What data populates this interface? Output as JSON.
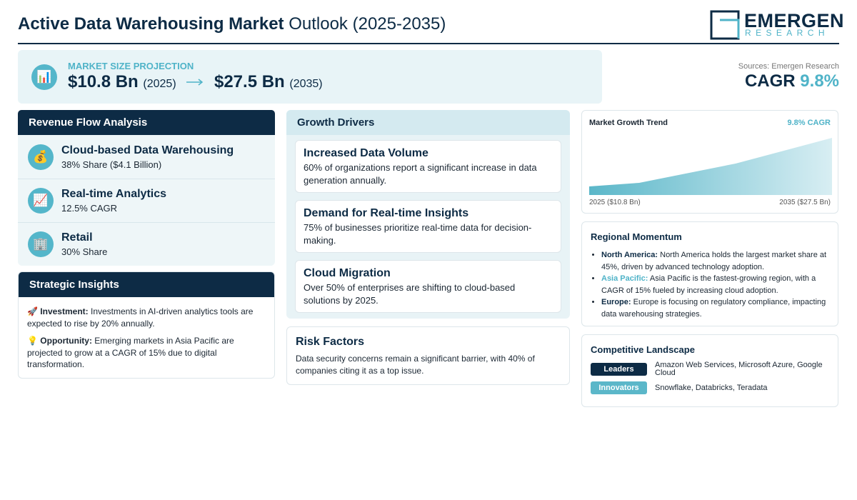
{
  "header": {
    "title_bold": "Active Data Warehousing Market",
    "title_rest": "Outlook (2025-2035)",
    "logo": {
      "name": "EMERGEN",
      "sub": "RESEARCH"
    }
  },
  "projection": {
    "icon": "📊",
    "label": "MARKET SIZE PROJECTION",
    "start_value": "$10.8 Bn",
    "start_year": "(2025)",
    "end_value": "$27.5 Bn",
    "end_year": "(2035)"
  },
  "cagr": {
    "source": "Sources: Emergen Research",
    "label": "CAGR",
    "value": "9.8%"
  },
  "revenue_flow": {
    "title": "Revenue Flow Analysis",
    "items": [
      {
        "icon": "💰",
        "name": "Cloud-based Data Warehousing",
        "detail": "38% Share ($4.1 Billion)"
      },
      {
        "icon": "📈",
        "name": "Real-time Analytics",
        "detail": "12.5% CAGR"
      },
      {
        "icon": "🏢",
        "name": "Retail",
        "detail": "30% Share"
      }
    ]
  },
  "strategic_insights": {
    "title": "Strategic Insights",
    "items": [
      {
        "icon": "🚀",
        "label": "Investment:",
        "text": "Investments in AI-driven analytics tools are expected to rise by 20% annually."
      },
      {
        "icon": "💡",
        "label": "Opportunity:",
        "text": "Emerging markets in Asia Pacific are projected to grow at a CAGR of 15% due to digital transformation."
      }
    ]
  },
  "growth_drivers": {
    "title": "Growth Drivers",
    "items": [
      {
        "title": "Increased Data Volume",
        "text": "60% of organizations report a significant increase in data generation annually."
      },
      {
        "title": "Demand for Real-time Insights",
        "text": "75% of businesses prioritize real-time data for decision-making."
      },
      {
        "title": "Cloud Migration",
        "text": "Over 50% of enterprises are shifting to cloud-based solutions by 2025."
      }
    ]
  },
  "risk_factors": {
    "title": "Risk Factors",
    "text": "Data security concerns remain a significant barrier, with 40% of companies citing it as a top issue."
  },
  "trend": {
    "title": "Market Growth Trend",
    "badge": "9.8% CAGR",
    "start": "2025 ($10.8 Bn)",
    "end": "2035 ($27.5 Bn)"
  },
  "regional": {
    "title": "Regional Momentum",
    "items": [
      {
        "region": "North America:",
        "text": "North America holds the largest market share at 45%, driven by advanced technology adoption."
      },
      {
        "region": "Asia Pacific:",
        "text": "Asia Pacific is the fastest-growing region, with a CAGR of 15% fueled by increasing cloud adoption."
      },
      {
        "region": "Europe:",
        "text": "Europe is focusing on regulatory compliance, impacting data warehousing strategies."
      }
    ]
  },
  "competitive": {
    "title": "Competitive Landscape",
    "rows": [
      {
        "tag": "Leaders",
        "text": "Amazon Web Services, Microsoft Azure, Google Cloud"
      },
      {
        "tag": "Innovators",
        "text": "Snowflake, Databricks, Teradata"
      }
    ]
  }
}
